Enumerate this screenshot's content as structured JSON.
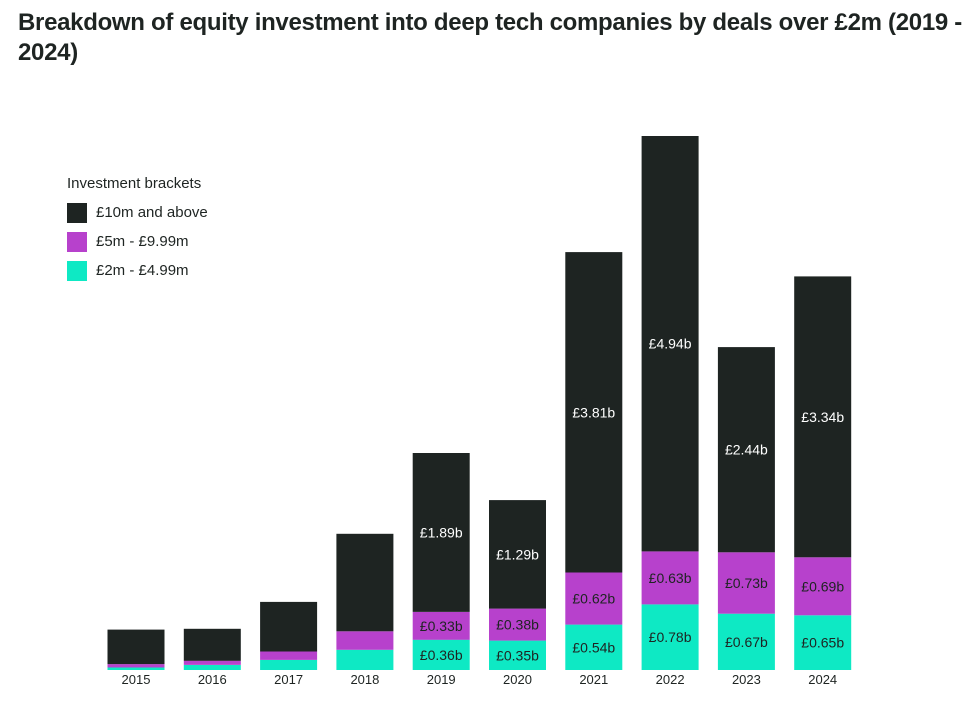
{
  "title": "Breakdown of equity investment into deep tech companies by deals over £2m (2019 - 2024)",
  "legend": {
    "title": "Investment brackets",
    "items": [
      {
        "label": "£10m and above",
        "color": "#1e2422"
      },
      {
        "label": "£5m - £9.99m",
        "color": "#b741cc"
      },
      {
        "label": "£2m - £4.99m",
        "color": "#0ee9c4"
      }
    ]
  },
  "chart_data": {
    "type": "bar",
    "stacked": true,
    "title": "Breakdown of equity investment into deep tech companies by deals over £2m (2019 - 2024)",
    "unit": "£b",
    "categories": [
      "2015",
      "2016",
      "2017",
      "2018",
      "2019",
      "2020",
      "2021",
      "2022",
      "2023",
      "2024"
    ],
    "series": [
      {
        "name": "£2m - £4.99m",
        "color": "#0ee9c4",
        "values": [
          0.03,
          0.06,
          0.12,
          0.24,
          0.36,
          0.35,
          0.54,
          0.78,
          0.67,
          0.65
        ],
        "labels": [
          "",
          "",
          "",
          "",
          "£0.36b",
          "£0.35b",
          "£0.54b",
          "£0.78b",
          "£0.67b",
          "£0.65b"
        ],
        "label_color": "#1e2422"
      },
      {
        "name": "£5m - £9.99m",
        "color": "#b741cc",
        "values": [
          0.04,
          0.05,
          0.1,
          0.22,
          0.33,
          0.38,
          0.62,
          0.63,
          0.73,
          0.69
        ],
        "labels": [
          "",
          "",
          "",
          "",
          "£0.33b",
          "£0.38b",
          "£0.62b",
          "£0.63b",
          "£0.73b",
          "£0.69b"
        ],
        "label_color": "#1e2422"
      },
      {
        "name": "£10m and above",
        "color": "#1e2422",
        "values": [
          0.41,
          0.38,
          0.59,
          1.16,
          1.89,
          1.29,
          3.81,
          4.94,
          2.44,
          3.34
        ],
        "labels": [
          "",
          "",
          "",
          "",
          "£1.89b",
          "£1.29b",
          "£3.81b",
          "£4.94b",
          "£2.44b",
          "£3.34b"
        ],
        "label_color": "#ffffff"
      }
    ],
    "xlabel": "",
    "ylabel": "",
    "ylim": [
      0,
      6.35
    ],
    "grid": false,
    "legend_position": "top-left"
  }
}
